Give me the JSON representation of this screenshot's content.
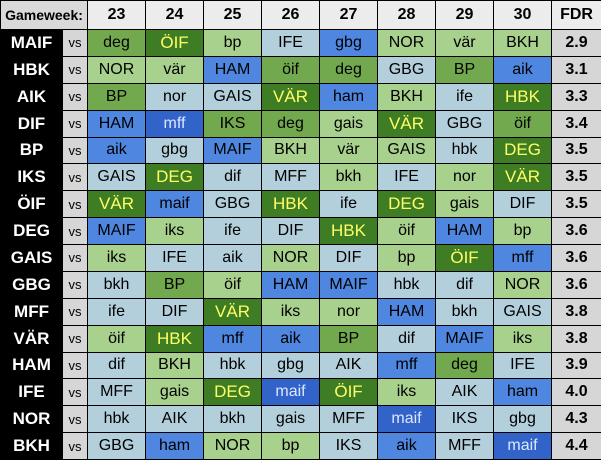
{
  "header": {
    "label": "Gameweek:",
    "gameweeks": [
      "23",
      "24",
      "25",
      "26",
      "27",
      "28",
      "29",
      "30"
    ],
    "fdr_label": "FDR"
  },
  "vs_label": "vs",
  "difficulty_colors": {
    "1": "#3f7d25",
    "2": "#72a94e",
    "3": "#a9d18e",
    "4": "#b4cfdc",
    "5": "#4f87e0",
    "6": "#3163c8"
  },
  "rows": [
    {
      "team": "MAIF",
      "fdr": "2.9",
      "fixtures": [
        {
          "opp": "deg",
          "d": 2
        },
        {
          "opp": "ÖIF",
          "d": 1
        },
        {
          "opp": "bp",
          "d": 3
        },
        {
          "opp": "IFE",
          "d": 4
        },
        {
          "opp": "gbg",
          "d": 5
        },
        {
          "opp": "NOR",
          "d": 3
        },
        {
          "opp": "vär",
          "d": 3
        },
        {
          "opp": "BKH",
          "d": 3
        }
      ]
    },
    {
      "team": "HBK",
      "fdr": "3.1",
      "fixtures": [
        {
          "opp": "NOR",
          "d": 3
        },
        {
          "opp": "vär",
          "d": 3
        },
        {
          "opp": "HAM",
          "d": 5
        },
        {
          "opp": "öif",
          "d": 2
        },
        {
          "opp": "deg",
          "d": 2
        },
        {
          "opp": "GBG",
          "d": 4
        },
        {
          "opp": "BP",
          "d": 2
        },
        {
          "opp": "aik",
          "d": 5
        }
      ]
    },
    {
      "team": "AIK",
      "fdr": "3.3",
      "fixtures": [
        {
          "opp": "BP",
          "d": 2
        },
        {
          "opp": "nor",
          "d": 4
        },
        {
          "opp": "GAIS",
          "d": 4
        },
        {
          "opp": "VÄR",
          "d": 1
        },
        {
          "opp": "ham",
          "d": 5
        },
        {
          "opp": "BKH",
          "d": 3
        },
        {
          "opp": "ife",
          "d": 4
        },
        {
          "opp": "HBK",
          "d": 1
        }
      ]
    },
    {
      "team": "DIF",
      "fdr": "3.4",
      "fixtures": [
        {
          "opp": "HAM",
          "d": 5
        },
        {
          "opp": "mff",
          "d": 6
        },
        {
          "opp": "IKS",
          "d": 2
        },
        {
          "opp": "deg",
          "d": 2
        },
        {
          "opp": "gais",
          "d": 3
        },
        {
          "opp": "VÄR",
          "d": 1
        },
        {
          "opp": "GBG",
          "d": 4
        },
        {
          "opp": "öif",
          "d": 2
        }
      ]
    },
    {
      "team": "BP",
      "fdr": "3.5",
      "fixtures": [
        {
          "opp": "aik",
          "d": 5
        },
        {
          "opp": "gbg",
          "d": 4
        },
        {
          "opp": "MAIF",
          "d": 5
        },
        {
          "opp": "BKH",
          "d": 3
        },
        {
          "opp": "vär",
          "d": 3
        },
        {
          "opp": "GAIS",
          "d": 3
        },
        {
          "opp": "hbk",
          "d": 4
        },
        {
          "opp": "DEG",
          "d": 1
        }
      ]
    },
    {
      "team": "IKS",
      "fdr": "3.5",
      "fixtures": [
        {
          "opp": "GAIS",
          "d": 4
        },
        {
          "opp": "DEG",
          "d": 1
        },
        {
          "opp": "dif",
          "d": 4
        },
        {
          "opp": "MFF",
          "d": 4
        },
        {
          "opp": "bkh",
          "d": 3
        },
        {
          "opp": "IFE",
          "d": 4
        },
        {
          "opp": "nor",
          "d": 3
        },
        {
          "opp": "VÄR",
          "d": 1
        }
      ]
    },
    {
      "team": "ÖIF",
      "fdr": "3.5",
      "fixtures": [
        {
          "opp": "VÄR",
          "d": 1
        },
        {
          "opp": "maif",
          "d": 5
        },
        {
          "opp": "GBG",
          "d": 4
        },
        {
          "opp": "HBK",
          "d": 1
        },
        {
          "opp": "ife",
          "d": 4
        },
        {
          "opp": "DEG",
          "d": 1
        },
        {
          "opp": "gais",
          "d": 3
        },
        {
          "opp": "DIF",
          "d": 4
        }
      ]
    },
    {
      "team": "DEG",
      "fdr": "3.6",
      "fixtures": [
        {
          "opp": "MAIF",
          "d": 5
        },
        {
          "opp": "iks",
          "d": 3
        },
        {
          "opp": "ife",
          "d": 4
        },
        {
          "opp": "DIF",
          "d": 4
        },
        {
          "opp": "HBK",
          "d": 1
        },
        {
          "opp": "öif",
          "d": 3
        },
        {
          "opp": "HAM",
          "d": 5
        },
        {
          "opp": "bp",
          "d": 3
        }
      ]
    },
    {
      "team": "GAIS",
      "fdr": "3.6",
      "fixtures": [
        {
          "opp": "iks",
          "d": 3
        },
        {
          "opp": "IFE",
          "d": 4
        },
        {
          "opp": "aik",
          "d": 4
        },
        {
          "opp": "NOR",
          "d": 3
        },
        {
          "opp": "DIF",
          "d": 4
        },
        {
          "opp": "bp",
          "d": 3
        },
        {
          "opp": "ÖIF",
          "d": 1
        },
        {
          "opp": "mff",
          "d": 5
        }
      ]
    },
    {
      "team": "GBG",
      "fdr": "3.6",
      "fixtures": [
        {
          "opp": "bkh",
          "d": 4
        },
        {
          "opp": "BP",
          "d": 2
        },
        {
          "opp": "öif",
          "d": 3
        },
        {
          "opp": "HAM",
          "d": 5
        },
        {
          "opp": "MAIF",
          "d": 5
        },
        {
          "opp": "hbk",
          "d": 4
        },
        {
          "opp": "dif",
          "d": 4
        },
        {
          "opp": "NOR",
          "d": 3
        }
      ]
    },
    {
      "team": "MFF",
      "fdr": "3.8",
      "fixtures": [
        {
          "opp": "ife",
          "d": 4
        },
        {
          "opp": "DIF",
          "d": 4
        },
        {
          "opp": "VÄR",
          "d": 1
        },
        {
          "opp": "iks",
          "d": 3
        },
        {
          "opp": "nor",
          "d": 3
        },
        {
          "opp": "HAM",
          "d": 5
        },
        {
          "opp": "bkh",
          "d": 4
        },
        {
          "opp": "GAIS",
          "d": 4
        }
      ]
    },
    {
      "team": "VÄR",
      "fdr": "3.8",
      "fixtures": [
        {
          "opp": "öif",
          "d": 3
        },
        {
          "opp": "HBK",
          "d": 1
        },
        {
          "opp": "mff",
          "d": 5
        },
        {
          "opp": "aik",
          "d": 5
        },
        {
          "opp": "BP",
          "d": 2
        },
        {
          "opp": "dif",
          "d": 4
        },
        {
          "opp": "MAIF",
          "d": 5
        },
        {
          "opp": "iks",
          "d": 3
        }
      ]
    },
    {
      "team": "HAM",
      "fdr": "3.9",
      "fixtures": [
        {
          "opp": "dif",
          "d": 4
        },
        {
          "opp": "BKH",
          "d": 3
        },
        {
          "opp": "hbk",
          "d": 4
        },
        {
          "opp": "gbg",
          "d": 4
        },
        {
          "opp": "AIK",
          "d": 4
        },
        {
          "opp": "mff",
          "d": 5
        },
        {
          "opp": "deg",
          "d": 2
        },
        {
          "opp": "IFE",
          "d": 4
        }
      ]
    },
    {
      "team": "IFE",
      "fdr": "4.0",
      "fixtures": [
        {
          "opp": "MFF",
          "d": 4
        },
        {
          "opp": "gais",
          "d": 3
        },
        {
          "opp": "DEG",
          "d": 1
        },
        {
          "opp": "maif",
          "d": 6
        },
        {
          "opp": "ÖIF",
          "d": 1
        },
        {
          "opp": "iks",
          "d": 3
        },
        {
          "opp": "AIK",
          "d": 4
        },
        {
          "opp": "ham",
          "d": 5
        }
      ]
    },
    {
      "team": "NOR",
      "fdr": "4.3",
      "fixtures": [
        {
          "opp": "hbk",
          "d": 4
        },
        {
          "opp": "AIK",
          "d": 4
        },
        {
          "opp": "bkh",
          "d": 4
        },
        {
          "opp": "gais",
          "d": 4
        },
        {
          "opp": "MFF",
          "d": 4
        },
        {
          "opp": "maif",
          "d": 6
        },
        {
          "opp": "IKS",
          "d": 4
        },
        {
          "opp": "gbg",
          "d": 4
        }
      ]
    },
    {
      "team": "BKH",
      "fdr": "4.4",
      "fixtures": [
        {
          "opp": "GBG",
          "d": 4
        },
        {
          "opp": "ham",
          "d": 5
        },
        {
          "opp": "NOR",
          "d": 3
        },
        {
          "opp": "bp",
          "d": 3
        },
        {
          "opp": "IKS",
          "d": 4
        },
        {
          "opp": "aik",
          "d": 5
        },
        {
          "opp": "MFF",
          "d": 4
        },
        {
          "opp": "maif",
          "d": 6
        }
      ]
    }
  ]
}
